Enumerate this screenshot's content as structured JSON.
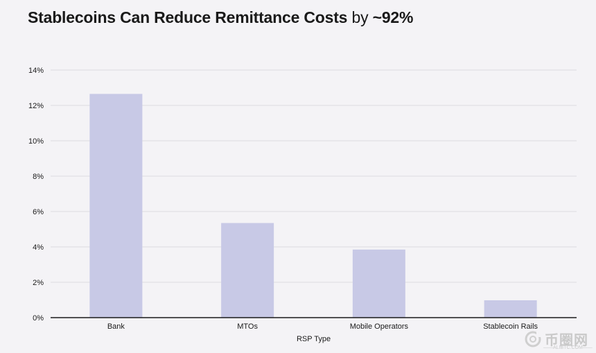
{
  "header": {
    "title_main": "Stablecoins Can Reduce Remittance Costs",
    "title_by": "by",
    "title_value": "~92%"
  },
  "chart_data": {
    "type": "bar",
    "title": "Stablecoins Can Reduce Remittance Costs by ~92%",
    "categories": [
      "Bank",
      "MTOs",
      "Mobile Operators",
      "Stablecoin Rails"
    ],
    "values": [
      12.65,
      5.35,
      3.85,
      0.98
    ],
    "xlabel": "RSP Type",
    "ylabel": "",
    "ylim": [
      0,
      14
    ],
    "yticks": [
      0,
      2,
      4,
      6,
      8,
      10,
      12,
      14
    ],
    "ytick_labels": [
      "0%",
      "2%",
      "4%",
      "6%",
      "8%",
      "10%",
      "12%",
      "14%"
    ],
    "grid": true,
    "bar_color": "#c8c9e6",
    "grid_color": "#dcdbe0",
    "axis_color": "#1a1a1a"
  },
  "watermark": {
    "text": "币圈网",
    "sub": "ALIBTC.COM"
  }
}
